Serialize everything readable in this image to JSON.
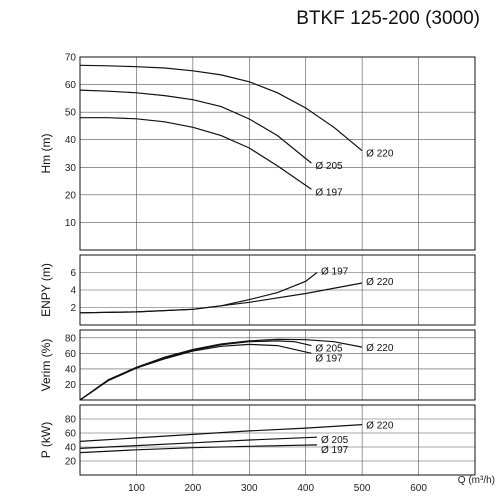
{
  "title": "BTKF 125-200 (3000)",
  "chart_data": [
    {
      "id": "head",
      "type": "line",
      "ylabel": "Hm (m)",
      "ylim": [
        0,
        70
      ],
      "yticks": [
        10,
        20,
        30,
        40,
        50,
        60,
        70
      ],
      "series": [
        {
          "name": "Ø 220",
          "x": [
            0,
            50,
            100,
            150,
            200,
            250,
            300,
            350,
            400,
            450,
            500
          ],
          "y": [
            67,
            66.8,
            66.5,
            66,
            65,
            63.5,
            61,
            57,
            51.5,
            44.5,
            36
          ]
        },
        {
          "name": "Ø 205",
          "x": [
            0,
            50,
            100,
            150,
            200,
            250,
            300,
            350,
            410
          ],
          "y": [
            58,
            57.6,
            57,
            56,
            54.5,
            52,
            47.5,
            41.5,
            31.5
          ]
        },
        {
          "name": "Ø 197",
          "x": [
            0,
            50,
            100,
            150,
            200,
            250,
            300,
            350,
            410
          ],
          "y": [
            48,
            48,
            47.6,
            46.5,
            44.5,
            41.5,
            37,
            30.5,
            22
          ]
        }
      ]
    },
    {
      "id": "npsh",
      "type": "line",
      "ylabel": "ENPY (m)",
      "ylim": [
        0,
        8
      ],
      "yticks": [
        2,
        4,
        6
      ],
      "series": [
        {
          "name": "Ø 197",
          "x": [
            0,
            100,
            200,
            250,
            300,
            350,
            400,
            420
          ],
          "y": [
            1.4,
            1.5,
            1.8,
            2.2,
            2.9,
            3.7,
            5.0,
            6.0
          ]
        },
        {
          "name": "Ø 220",
          "x": [
            0,
            100,
            200,
            300,
            400,
            500
          ],
          "y": [
            1.4,
            1.5,
            1.8,
            2.6,
            3.6,
            4.8
          ]
        }
      ]
    },
    {
      "id": "efficiency",
      "type": "line",
      "ylabel": "Verim (%)",
      "ylim": [
        0,
        90
      ],
      "yticks": [
        20,
        40,
        60,
        80
      ],
      "series": [
        {
          "name": "Ø 220",
          "x": [
            0,
            50,
            100,
            150,
            200,
            250,
            300,
            350,
            400,
            450,
            500
          ],
          "y": [
            0,
            26,
            42,
            55,
            65,
            72,
            76,
            78,
            77.5,
            75,
            68
          ]
        },
        {
          "name": "Ø 205",
          "x": [
            0,
            50,
            100,
            150,
            200,
            250,
            300,
            350,
            380,
            410
          ],
          "y": [
            0,
            25,
            41,
            54,
            64,
            71,
            75,
            76,
            75,
            70
          ]
        },
        {
          "name": "Ø 197",
          "x": [
            0,
            50,
            100,
            150,
            200,
            250,
            300,
            350,
            410
          ],
          "y": [
            0,
            25,
            41,
            53,
            63,
            69,
            71.5,
            70,
            60
          ]
        }
      ]
    },
    {
      "id": "power",
      "type": "line",
      "xlabel": "Q (m³/h)",
      "ylabel": "P (kW)",
      "xlim": [
        0,
        700
      ],
      "xticks": [
        100,
        200,
        300,
        400,
        500,
        600
      ],
      "ylim": [
        0,
        100
      ],
      "yticks": [
        20,
        40,
        60,
        80
      ],
      "series": [
        {
          "name": "Ø 220",
          "x": [
            0,
            100,
            200,
            300,
            400,
            500
          ],
          "y": [
            48,
            53,
            58,
            63,
            67,
            72
          ]
        },
        {
          "name": "Ø 205",
          "x": [
            0,
            100,
            200,
            300,
            420
          ],
          "y": [
            38,
            42,
            46,
            50,
            54
          ]
        },
        {
          "name": "Ø 197",
          "x": [
            0,
            100,
            200,
            300,
            420
          ],
          "y": [
            32,
            36,
            39,
            41,
            43
          ]
        }
      ]
    }
  ]
}
